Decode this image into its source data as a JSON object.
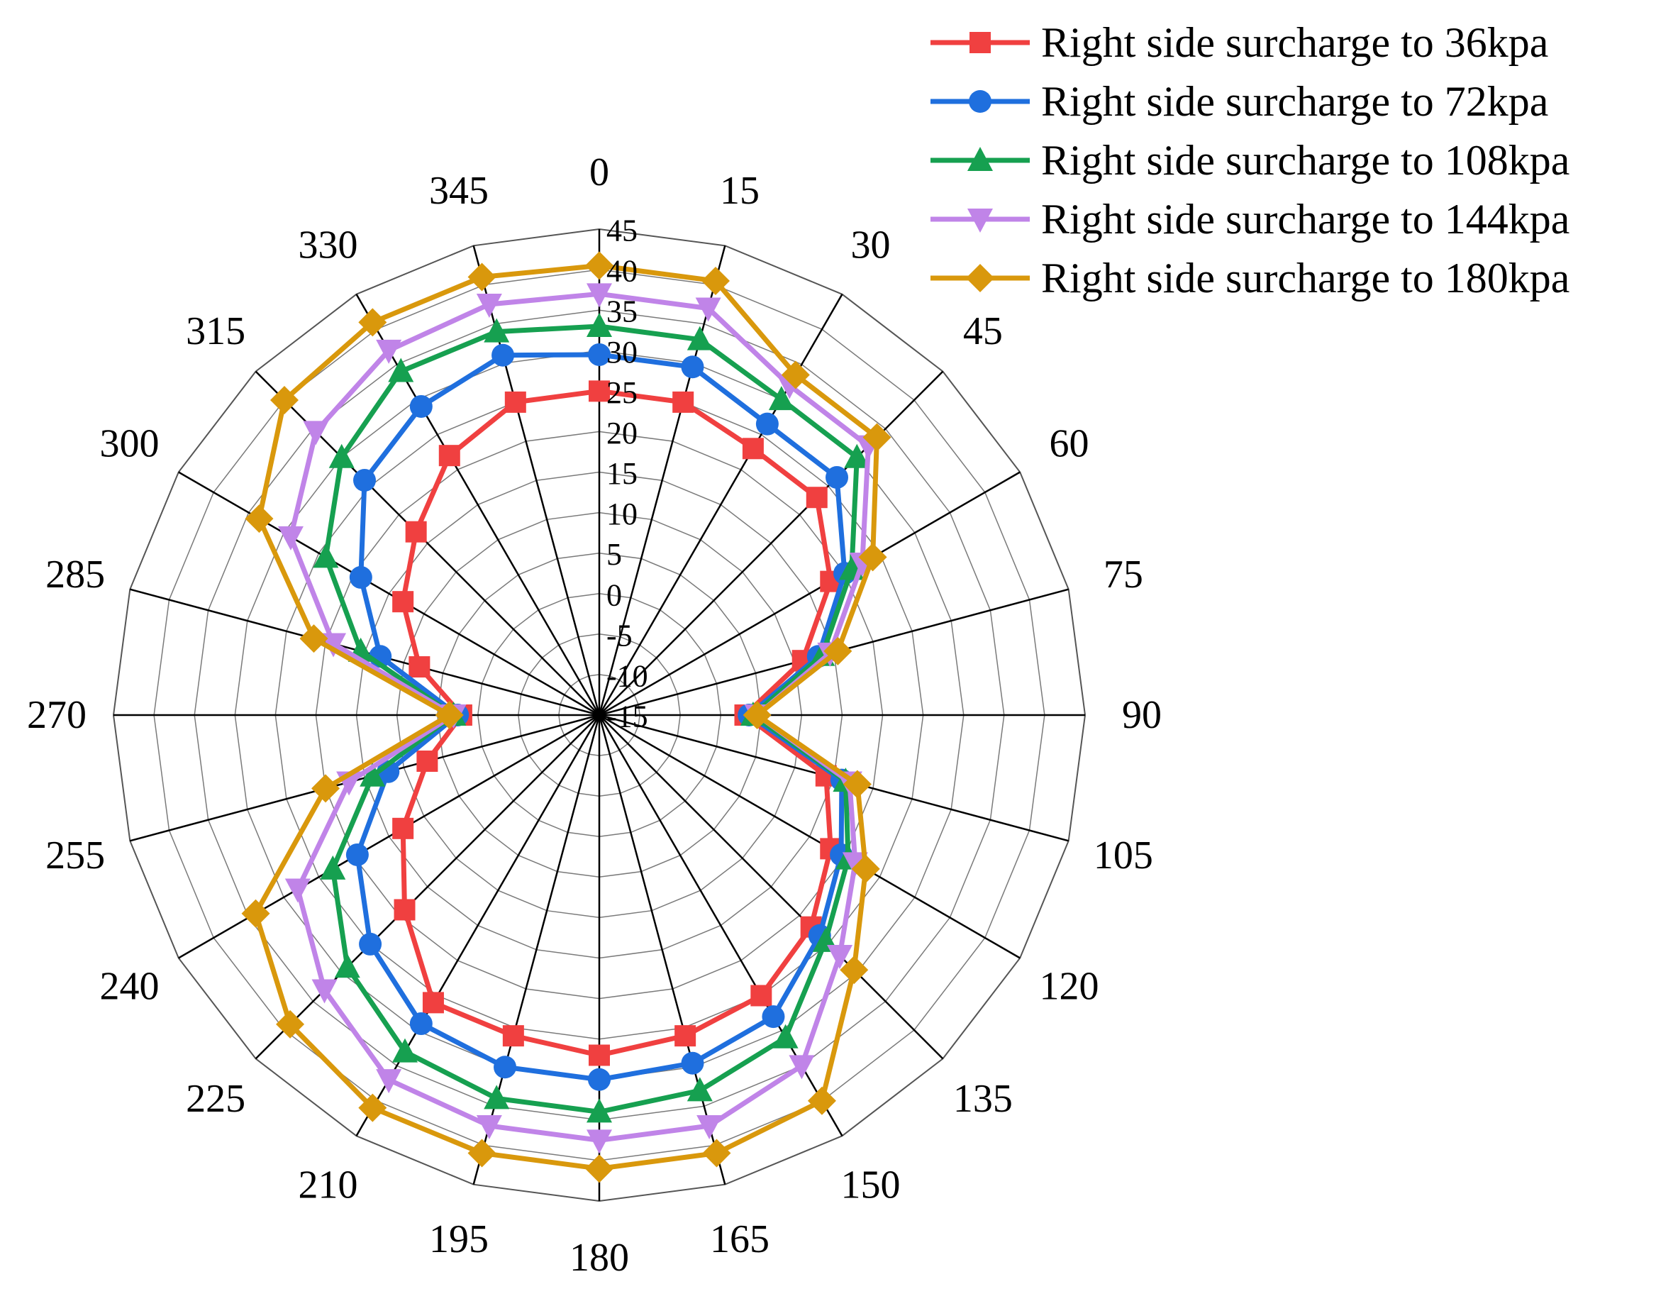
{
  "chart_data": {
    "type": "radar",
    "angles": [
      "0",
      "345",
      "330",
      "315",
      "300",
      "285",
      "270",
      "255",
      "240",
      "225",
      "210",
      "195",
      "180",
      "165",
      "150",
      "135",
      "120",
      "105",
      "90",
      "75",
      "60",
      "45",
      "30",
      "15"
    ],
    "radial_ticks": [
      "45",
      "40",
      "35",
      "30",
      "25",
      "20",
      "15",
      "10",
      "5",
      "0",
      "-5",
      "-10",
      "-15"
    ],
    "rlim": [
      -15,
      45
    ],
    "grid": true,
    "legend_position": "top-right",
    "series": [
      {
        "name": "Right side surcharge to 36kpa",
        "color": "#f04040",
        "marker": "square",
        "values": [
          25.0,
          25.0,
          22.0,
          17.0,
          13.0,
          8.0,
          2.0,
          7.0,
          13.0,
          19.0,
          26.0,
          26.0,
          27.0,
          26.0,
          25.0,
          22.0,
          18.0,
          14.0,
          3.0,
          11.0,
          18.0,
          23.0,
          23.0,
          25.0
        ]
      },
      {
        "name": "Right side surcharge to 72kpa",
        "color": "#1f6fde",
        "marker": "circle",
        "values": [
          29.5,
          31.0,
          29.0,
          26.0,
          19.0,
          13.0,
          2.5,
          12.0,
          19.5,
          25.0,
          29.0,
          30.0,
          30.0,
          29.5,
          28.0,
          23.5,
          19.5,
          16.0,
          3.5,
          13.0,
          20.0,
          26.5,
          26.5,
          29.5
        ]
      },
      {
        "name": "Right side surcharge to 108kpa",
        "color": "#16a050",
        "marker": "triangle-up",
        "values": [
          33.0,
          34.0,
          34.0,
          30.0,
          24.0,
          15.5,
          3.0,
          14.0,
          23.0,
          29.0,
          33.0,
          34.0,
          34.0,
          33.0,
          31.0,
          24.5,
          20.5,
          16.5,
          4.0,
          13.5,
          21.0,
          30.0,
          30.0,
          33.0
        ]
      },
      {
        "name": "Right side surcharge to 144kpa",
        "color": "#c084e8",
        "marker": "triangle-down",
        "values": [
          37.0,
          37.5,
          37.0,
          34.5,
          29.0,
          19.0,
          3.0,
          17.0,
          28.0,
          33.0,
          37.0,
          37.5,
          37.5,
          37.5,
          35.0,
          27.0,
          21.5,
          17.0,
          4.5,
          14.5,
          22.5,
          32.0,
          32.0,
          37.0
        ]
      },
      {
        "name": "Right side surcharge to 180kpa",
        "color": "#d9980c",
        "marker": "diamond",
        "values": [
          40.5,
          41.0,
          41.0,
          40.0,
          33.5,
          21.5,
          3.5,
          20.0,
          34.0,
          39.0,
          41.0,
          41.0,
          41.0,
          41.0,
          40.0,
          29.5,
          23.0,
          18.0,
          4.5,
          15.5,
          24.0,
          33.5,
          33.5,
          40.5
        ]
      }
    ]
  }
}
